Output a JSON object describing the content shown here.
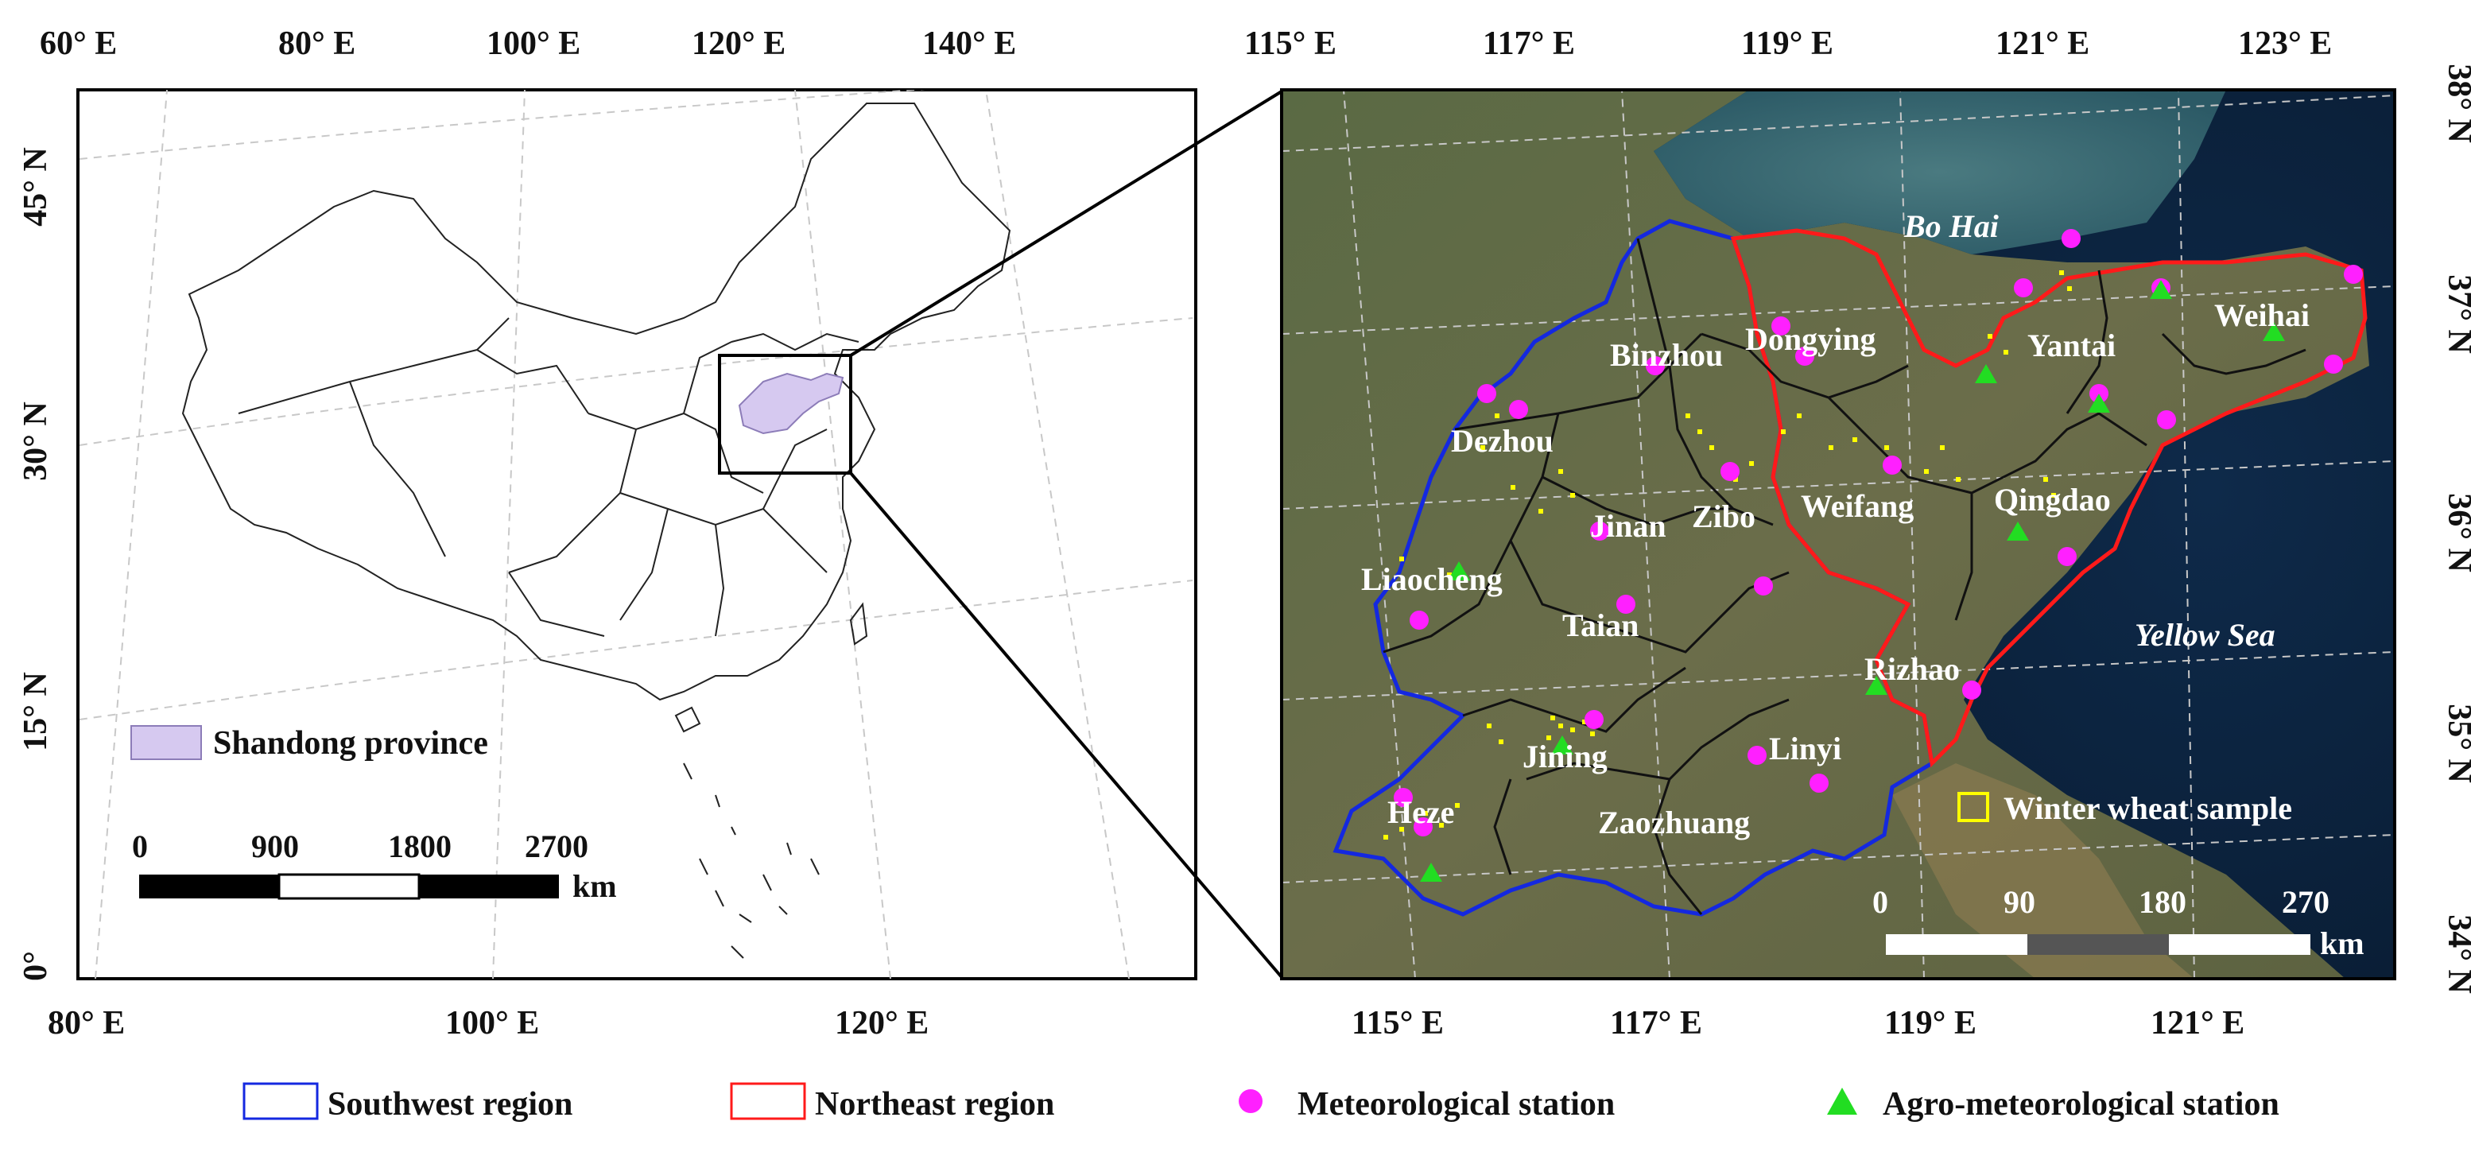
{
  "left_map": {
    "top_lon_labels": [
      "60° E",
      "80° E",
      "100° E",
      "120° E",
      "140° E"
    ],
    "bottom_lon_labels": [
      "80° E",
      "100° E",
      "120° E"
    ],
    "lat_labels": [
      "45° N",
      "30° N",
      "15° N",
      "0°"
    ],
    "legend_province": "Shandong province",
    "scale_numbers": [
      "0",
      "900",
      "1800",
      "2700"
    ],
    "scale_unit": "km",
    "colors": {
      "province_fill": "#d6c9f0",
      "province_stroke": "#8c7cb8"
    }
  },
  "right_map": {
    "top_lon_labels": [
      "115° E",
      "117° E",
      "119° E",
      "121° E",
      "123° E"
    ],
    "bottom_lon_labels": [
      "115° E",
      "117° E",
      "119° E",
      "121° E"
    ],
    "lat_labels": [
      "38° N",
      "37° N",
      "36° N",
      "35° N",
      "34° N"
    ],
    "cities": [
      "Binzhou",
      "Dongying",
      "Yantai",
      "Weihai",
      "Dezhou",
      "Jinan",
      "Zibo",
      "Weifang",
      "Qingdao",
      "Liaocheng",
      "Taian",
      "Rizhao",
      "Jining",
      "Linyi",
      "Heze",
      "Zaozhuang"
    ],
    "seas": [
      "Bo Hai",
      "Yellow Sea"
    ],
    "sample_legend": "Winter wheat sample",
    "scale_numbers": [
      "0",
      "90",
      "180",
      "270"
    ],
    "scale_unit": "km",
    "colors": {
      "southwest_boundary": "#1428e0",
      "northeast_boundary": "#ff1a1a",
      "met_station": "#ff20ff",
      "agro_station": "#22dd22",
      "wheat_sample": "#ffff00"
    }
  },
  "legend": {
    "southwest": "Southwest region",
    "northeast": "Northeast region",
    "met_station": "Meteorological station",
    "agro_station": "Agro-meteorological station"
  }
}
